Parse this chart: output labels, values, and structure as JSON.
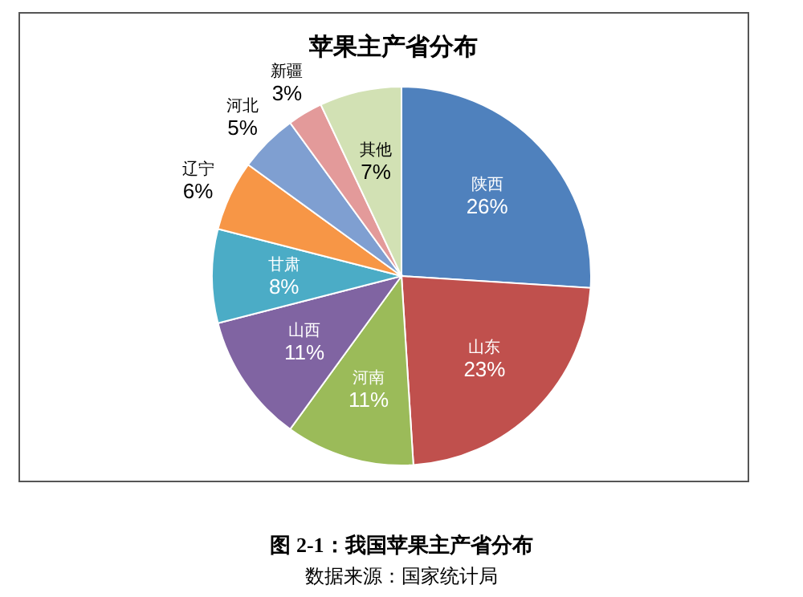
{
  "chart_data": {
    "type": "pie",
    "title": "苹果主产省分布",
    "categories": [
      "陕西",
      "山东",
      "河南",
      "山西",
      "甘肃",
      "辽宁",
      "河北",
      "新疆",
      "其他"
    ],
    "values": [
      26,
      23,
      11,
      11,
      8,
      6,
      5,
      3,
      7
    ],
    "colors": [
      "#4f81bd",
      "#c0504d",
      "#9bbb59",
      "#8064a2",
      "#4bacc6",
      "#f79646",
      "#7f9fd1",
      "#e39a9a",
      "#d2e1b4"
    ],
    "value_labels": [
      "26%",
      "23%",
      "11%",
      "11%",
      "8%",
      "6%",
      "5%",
      "3%",
      "7%"
    ],
    "annotations": [
      "图 2-1：我国苹果主产省分布",
      "数据来源：国家统计局"
    ]
  }
}
